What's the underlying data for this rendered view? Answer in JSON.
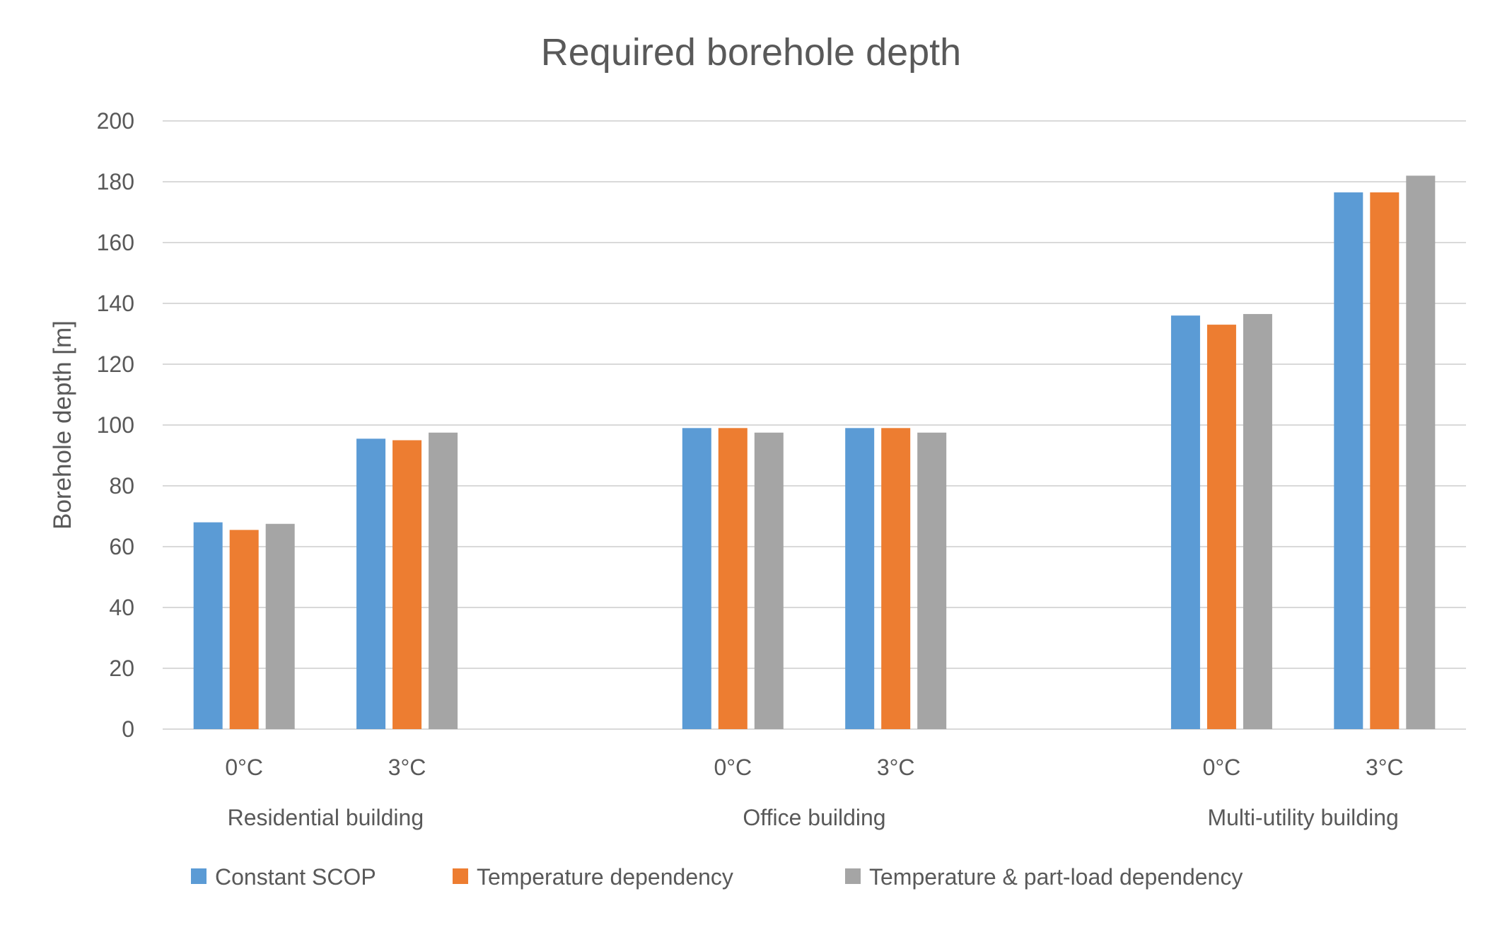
{
  "chart_data": {
    "type": "bar",
    "title": "Required borehole depth",
    "xlabel": "",
    "ylabel": "Borehole depth [m]",
    "ylim": [
      0,
      200
    ],
    "yticks": [
      0,
      20,
      40,
      60,
      80,
      100,
      120,
      140,
      160,
      180,
      200
    ],
    "grid": true,
    "legend_position": "bottom",
    "groups": [
      {
        "label": "Residential building",
        "categories": [
          "0°C",
          "3°C"
        ]
      },
      {
        "label": "Office building",
        "categories": [
          "0°C",
          "3°C"
        ]
      },
      {
        "label": "Multi-utility building",
        "categories": [
          "0°C",
          "3°C"
        ]
      }
    ],
    "series": [
      {
        "name": "Constant SCOP",
        "color": "#5B9BD5",
        "values": [
          68,
          95.5,
          99,
          99,
          136,
          176.5
        ]
      },
      {
        "name": "Temperature dependency",
        "color": "#ED7D31",
        "values": [
          65.5,
          95,
          99,
          99,
          133,
          176.5
        ]
      },
      {
        "name": "Temperature & part-load dependency",
        "color": "#A5A5A5",
        "values": [
          67.5,
          97.5,
          97.5,
          97.5,
          136.5,
          182
        ]
      }
    ]
  }
}
